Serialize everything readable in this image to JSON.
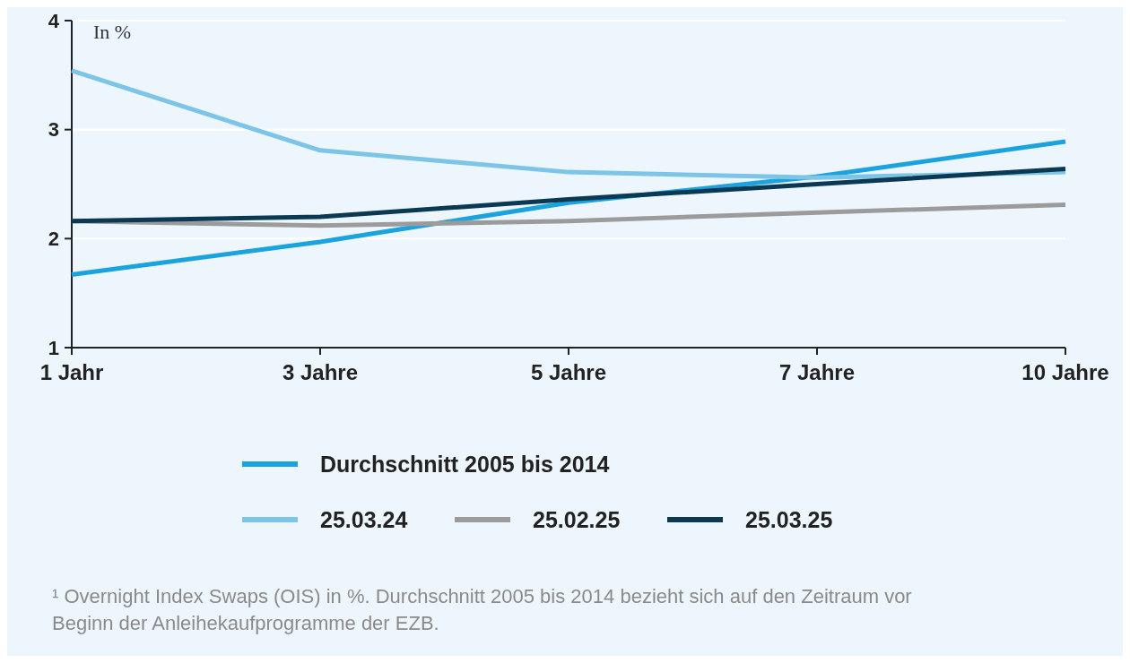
{
  "chart_data": {
    "type": "line",
    "ylabel": "In %",
    "categories": [
      "1 Jahr",
      "3 Jahre",
      "5 Jahre",
      "7 Jahre",
      "10 Jahre"
    ],
    "ylim": [
      1,
      4
    ],
    "yticks": [
      1,
      2,
      3,
      4
    ],
    "grid": "y",
    "legend": "bottom",
    "line_style": "solid",
    "series": [
      {
        "name": "Durchschnitt 2005 bis 2014",
        "color": "#1ba3e0",
        "values": [
          1.67,
          1.97,
          2.33,
          2.57,
          2.89
        ]
      },
      {
        "name": "25.03.24",
        "color": "#7cc4e8",
        "values": [
          3.54,
          2.81,
          2.61,
          2.56,
          2.61
        ]
      },
      {
        "name": "25.02.25",
        "color": "#9b9b9b",
        "values": [
          2.16,
          2.12,
          2.16,
          2.24,
          2.31
        ]
      },
      {
        "name": "25.03.25",
        "color": "#0b3954",
        "values": [
          2.16,
          2.2,
          2.36,
          2.5,
          2.64
        ]
      }
    ],
    "annotations": [
      "¹ Overnight Index Swaps (OIS) in %. Durchschnitt 2005 bis 2014 bezieht sich auf den Zeitraum vor Beginn der Anleihekaufprogramme der EZB."
    ]
  }
}
